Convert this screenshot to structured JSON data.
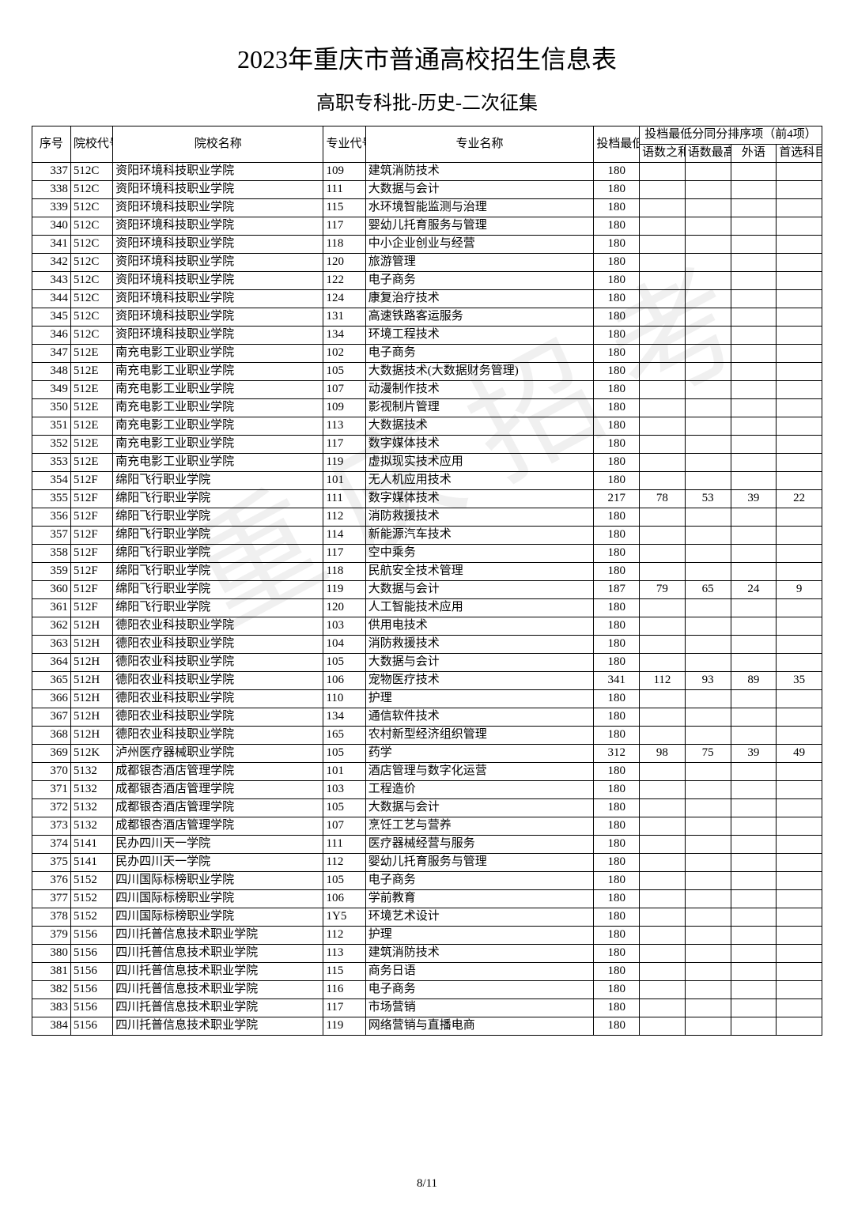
{
  "title": "2023年重庆市普通高校招生信息表",
  "subtitle": "高职专科批-历史-二次征集",
  "watermark": "重庆招考",
  "pager": "8/11",
  "headers": {
    "seq": "序号",
    "school_code": "院校代号",
    "school_name": "院校名称",
    "major_code": "专业代号",
    "major_name": "专业名称",
    "score": "投档最低分",
    "tiebreak_group": "投档最低分同分排序项（前4项）",
    "t1": "语数之和",
    "t2": "语数最高",
    "t3": "外语",
    "t4": "首选科目"
  },
  "rows": [
    {
      "seq": "337",
      "sc": "512C",
      "sn": "资阳环境科技职业学院",
      "mc": "109",
      "mn": "建筑消防技术",
      "score": "180",
      "t1": "",
      "t2": "",
      "t3": "",
      "t4": ""
    },
    {
      "seq": "338",
      "sc": "512C",
      "sn": "资阳环境科技职业学院",
      "mc": "111",
      "mn": "大数据与会计",
      "score": "180",
      "t1": "",
      "t2": "",
      "t3": "",
      "t4": ""
    },
    {
      "seq": "339",
      "sc": "512C",
      "sn": "资阳环境科技职业学院",
      "mc": "115",
      "mn": "水环境智能监测与治理",
      "score": "180",
      "t1": "",
      "t2": "",
      "t3": "",
      "t4": ""
    },
    {
      "seq": "340",
      "sc": "512C",
      "sn": "资阳环境科技职业学院",
      "mc": "117",
      "mn": "婴幼儿托育服务与管理",
      "score": "180",
      "t1": "",
      "t2": "",
      "t3": "",
      "t4": ""
    },
    {
      "seq": "341",
      "sc": "512C",
      "sn": "资阳环境科技职业学院",
      "mc": "118",
      "mn": "中小企业创业与经营",
      "score": "180",
      "t1": "",
      "t2": "",
      "t3": "",
      "t4": ""
    },
    {
      "seq": "342",
      "sc": "512C",
      "sn": "资阳环境科技职业学院",
      "mc": "120",
      "mn": "旅游管理",
      "score": "180",
      "t1": "",
      "t2": "",
      "t3": "",
      "t4": ""
    },
    {
      "seq": "343",
      "sc": "512C",
      "sn": "资阳环境科技职业学院",
      "mc": "122",
      "mn": "电子商务",
      "score": "180",
      "t1": "",
      "t2": "",
      "t3": "",
      "t4": ""
    },
    {
      "seq": "344",
      "sc": "512C",
      "sn": "资阳环境科技职业学院",
      "mc": "124",
      "mn": "康复治疗技术",
      "score": "180",
      "t1": "",
      "t2": "",
      "t3": "",
      "t4": ""
    },
    {
      "seq": "345",
      "sc": "512C",
      "sn": "资阳环境科技职业学院",
      "mc": "131",
      "mn": "高速铁路客运服务",
      "score": "180",
      "t1": "",
      "t2": "",
      "t3": "",
      "t4": ""
    },
    {
      "seq": "346",
      "sc": "512C",
      "sn": "资阳环境科技职业学院",
      "mc": "134",
      "mn": "环境工程技术",
      "score": "180",
      "t1": "",
      "t2": "",
      "t3": "",
      "t4": ""
    },
    {
      "seq": "347",
      "sc": "512E",
      "sn": "南充电影工业职业学院",
      "mc": "102",
      "mn": "电子商务",
      "score": "180",
      "t1": "",
      "t2": "",
      "t3": "",
      "t4": ""
    },
    {
      "seq": "348",
      "sc": "512E",
      "sn": "南充电影工业职业学院",
      "mc": "105",
      "mn": "大数据技术(大数据财务管理)",
      "score": "180",
      "t1": "",
      "t2": "",
      "t3": "",
      "t4": ""
    },
    {
      "seq": "349",
      "sc": "512E",
      "sn": "南充电影工业职业学院",
      "mc": "107",
      "mn": "动漫制作技术",
      "score": "180",
      "t1": "",
      "t2": "",
      "t3": "",
      "t4": ""
    },
    {
      "seq": "350",
      "sc": "512E",
      "sn": "南充电影工业职业学院",
      "mc": "109",
      "mn": "影视制片管理",
      "score": "180",
      "t1": "",
      "t2": "",
      "t3": "",
      "t4": ""
    },
    {
      "seq": "351",
      "sc": "512E",
      "sn": "南充电影工业职业学院",
      "mc": "113",
      "mn": "大数据技术",
      "score": "180",
      "t1": "",
      "t2": "",
      "t3": "",
      "t4": ""
    },
    {
      "seq": "352",
      "sc": "512E",
      "sn": "南充电影工业职业学院",
      "mc": "117",
      "mn": "数字媒体技术",
      "score": "180",
      "t1": "",
      "t2": "",
      "t3": "",
      "t4": ""
    },
    {
      "seq": "353",
      "sc": "512E",
      "sn": "南充电影工业职业学院",
      "mc": "119",
      "mn": "虚拟现实技术应用",
      "score": "180",
      "t1": "",
      "t2": "",
      "t3": "",
      "t4": ""
    },
    {
      "seq": "354",
      "sc": "512F",
      "sn": "绵阳飞行职业学院",
      "mc": "101",
      "mn": "无人机应用技术",
      "score": "180",
      "t1": "",
      "t2": "",
      "t3": "",
      "t4": ""
    },
    {
      "seq": "355",
      "sc": "512F",
      "sn": "绵阳飞行职业学院",
      "mc": "111",
      "mn": "数字媒体技术",
      "score": "217",
      "t1": "78",
      "t2": "53",
      "t3": "39",
      "t4": "22"
    },
    {
      "seq": "356",
      "sc": "512F",
      "sn": "绵阳飞行职业学院",
      "mc": "112",
      "mn": "消防救援技术",
      "score": "180",
      "t1": "",
      "t2": "",
      "t3": "",
      "t4": ""
    },
    {
      "seq": "357",
      "sc": "512F",
      "sn": "绵阳飞行职业学院",
      "mc": "114",
      "mn": "新能源汽车技术",
      "score": "180",
      "t1": "",
      "t2": "",
      "t3": "",
      "t4": ""
    },
    {
      "seq": "358",
      "sc": "512F",
      "sn": "绵阳飞行职业学院",
      "mc": "117",
      "mn": "空中乘务",
      "score": "180",
      "t1": "",
      "t2": "",
      "t3": "",
      "t4": ""
    },
    {
      "seq": "359",
      "sc": "512F",
      "sn": "绵阳飞行职业学院",
      "mc": "118",
      "mn": "民航安全技术管理",
      "score": "180",
      "t1": "",
      "t2": "",
      "t3": "",
      "t4": ""
    },
    {
      "seq": "360",
      "sc": "512F",
      "sn": "绵阳飞行职业学院",
      "mc": "119",
      "mn": "大数据与会计",
      "score": "187",
      "t1": "79",
      "t2": "65",
      "t3": "24",
      "t4": "9"
    },
    {
      "seq": "361",
      "sc": "512F",
      "sn": "绵阳飞行职业学院",
      "mc": "120",
      "mn": "人工智能技术应用",
      "score": "180",
      "t1": "",
      "t2": "",
      "t3": "",
      "t4": ""
    },
    {
      "seq": "362",
      "sc": "512H",
      "sn": "德阳农业科技职业学院",
      "mc": "103",
      "mn": "供用电技术",
      "score": "180",
      "t1": "",
      "t2": "",
      "t3": "",
      "t4": ""
    },
    {
      "seq": "363",
      "sc": "512H",
      "sn": "德阳农业科技职业学院",
      "mc": "104",
      "mn": "消防救援技术",
      "score": "180",
      "t1": "",
      "t2": "",
      "t3": "",
      "t4": ""
    },
    {
      "seq": "364",
      "sc": "512H",
      "sn": "德阳农业科技职业学院",
      "mc": "105",
      "mn": "大数据与会计",
      "score": "180",
      "t1": "",
      "t2": "",
      "t3": "",
      "t4": ""
    },
    {
      "seq": "365",
      "sc": "512H",
      "sn": "德阳农业科技职业学院",
      "mc": "106",
      "mn": "宠物医疗技术",
      "score": "341",
      "t1": "112",
      "t2": "93",
      "t3": "89",
      "t4": "35"
    },
    {
      "seq": "366",
      "sc": "512H",
      "sn": "德阳农业科技职业学院",
      "mc": "110",
      "mn": "护理",
      "score": "180",
      "t1": "",
      "t2": "",
      "t3": "",
      "t4": ""
    },
    {
      "seq": "367",
      "sc": "512H",
      "sn": "德阳农业科技职业学院",
      "mc": "134",
      "mn": "通信软件技术",
      "score": "180",
      "t1": "",
      "t2": "",
      "t3": "",
      "t4": ""
    },
    {
      "seq": "368",
      "sc": "512H",
      "sn": "德阳农业科技职业学院",
      "mc": "165",
      "mn": "农村新型经济组织管理",
      "score": "180",
      "t1": "",
      "t2": "",
      "t3": "",
      "t4": ""
    },
    {
      "seq": "369",
      "sc": "512K",
      "sn": "泸州医疗器械职业学院",
      "mc": "105",
      "mn": "药学",
      "score": "312",
      "t1": "98",
      "t2": "75",
      "t3": "39",
      "t4": "49"
    },
    {
      "seq": "370",
      "sc": "5132",
      "sn": "成都银杏酒店管理学院",
      "mc": "101",
      "mn": "酒店管理与数字化运营",
      "score": "180",
      "t1": "",
      "t2": "",
      "t3": "",
      "t4": ""
    },
    {
      "seq": "371",
      "sc": "5132",
      "sn": "成都银杏酒店管理学院",
      "mc": "103",
      "mn": "工程造价",
      "score": "180",
      "t1": "",
      "t2": "",
      "t3": "",
      "t4": ""
    },
    {
      "seq": "372",
      "sc": "5132",
      "sn": "成都银杏酒店管理学院",
      "mc": "105",
      "mn": "大数据与会计",
      "score": "180",
      "t1": "",
      "t2": "",
      "t3": "",
      "t4": ""
    },
    {
      "seq": "373",
      "sc": "5132",
      "sn": "成都银杏酒店管理学院",
      "mc": "107",
      "mn": "烹饪工艺与营养",
      "score": "180",
      "t1": "",
      "t2": "",
      "t3": "",
      "t4": ""
    },
    {
      "seq": "374",
      "sc": "5141",
      "sn": "民办四川天一学院",
      "mc": "111",
      "mn": "医疗器械经营与服务",
      "score": "180",
      "t1": "",
      "t2": "",
      "t3": "",
      "t4": ""
    },
    {
      "seq": "375",
      "sc": "5141",
      "sn": "民办四川天一学院",
      "mc": "112",
      "mn": "婴幼儿托育服务与管理",
      "score": "180",
      "t1": "",
      "t2": "",
      "t3": "",
      "t4": ""
    },
    {
      "seq": "376",
      "sc": "5152",
      "sn": "四川国际标榜职业学院",
      "mc": "105",
      "mn": "电子商务",
      "score": "180",
      "t1": "",
      "t2": "",
      "t3": "",
      "t4": ""
    },
    {
      "seq": "377",
      "sc": "5152",
      "sn": "四川国际标榜职业学院",
      "mc": "106",
      "mn": "学前教育",
      "score": "180",
      "t1": "",
      "t2": "",
      "t3": "",
      "t4": ""
    },
    {
      "seq": "378",
      "sc": "5152",
      "sn": "四川国际标榜职业学院",
      "mc": "1Y5",
      "mn": "环境艺术设计",
      "score": "180",
      "t1": "",
      "t2": "",
      "t3": "",
      "t4": ""
    },
    {
      "seq": "379",
      "sc": "5156",
      "sn": "四川托普信息技术职业学院",
      "mc": "112",
      "mn": "护理",
      "score": "180",
      "t1": "",
      "t2": "",
      "t3": "",
      "t4": ""
    },
    {
      "seq": "380",
      "sc": "5156",
      "sn": "四川托普信息技术职业学院",
      "mc": "113",
      "mn": "建筑消防技术",
      "score": "180",
      "t1": "",
      "t2": "",
      "t3": "",
      "t4": ""
    },
    {
      "seq": "381",
      "sc": "5156",
      "sn": "四川托普信息技术职业学院",
      "mc": "115",
      "mn": "商务日语",
      "score": "180",
      "t1": "",
      "t2": "",
      "t3": "",
      "t4": ""
    },
    {
      "seq": "382",
      "sc": "5156",
      "sn": "四川托普信息技术职业学院",
      "mc": "116",
      "mn": "电子商务",
      "score": "180",
      "t1": "",
      "t2": "",
      "t3": "",
      "t4": ""
    },
    {
      "seq": "383",
      "sc": "5156",
      "sn": "四川托普信息技术职业学院",
      "mc": "117",
      "mn": "市场营销",
      "score": "180",
      "t1": "",
      "t2": "",
      "t3": "",
      "t4": ""
    },
    {
      "seq": "384",
      "sc": "5156",
      "sn": "四川托普信息技术职业学院",
      "mc": "119",
      "mn": "网络营销与直播电商",
      "score": "180",
      "t1": "",
      "t2": "",
      "t3": "",
      "t4": ""
    }
  ]
}
